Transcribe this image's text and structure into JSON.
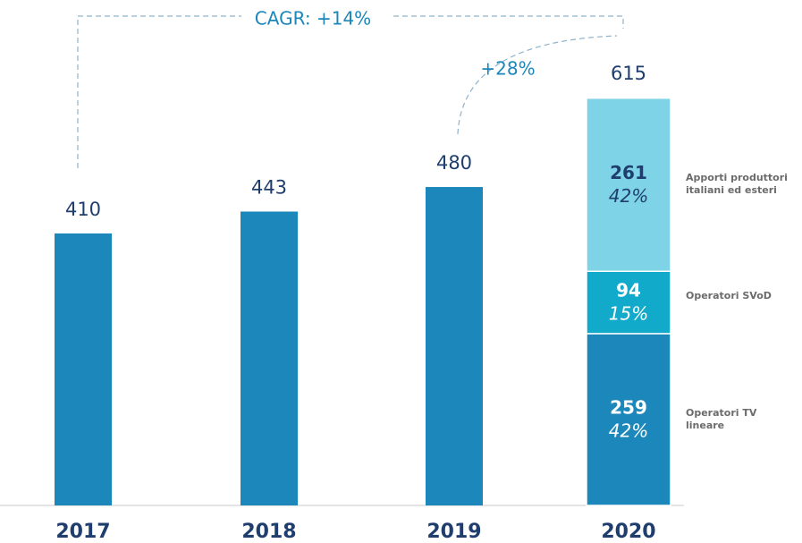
{
  "chart_data": {
    "type": "stacked_bar",
    "categories": [
      "2017",
      "2018",
      "2019",
      "2020"
    ],
    "values": [
      410,
      443,
      480,
      615
    ],
    "color": "#1b87bb",
    "series": [
      {
        "name": "Operatori TV lineare",
        "color": "#1b87bb",
        "label_color": "#ffffff",
        "values": [
          null,
          null,
          null,
          259
        ],
        "share_labels": [
          null,
          null,
          null,
          "42%"
        ]
      },
      {
        "name": "Operatori SVoD",
        "color": "#12aacb",
        "label_color": "#ffffff",
        "values": [
          null,
          null,
          null,
          94
        ],
        "share_labels": [
          null,
          null,
          null,
          "15%"
        ]
      },
      {
        "name": "Apporti produttori italiani ed esteri",
        "color": "#7fd3e6",
        "label_color": "#1f3e6e",
        "values": [
          null,
          null,
          null,
          261
        ],
        "share_labels": [
          null,
          null,
          null,
          "42%"
        ]
      }
    ],
    "ylim": [
      0,
      650
    ],
    "annotations": [
      "CAGR: +14%",
      "+28%"
    ]
  }
}
